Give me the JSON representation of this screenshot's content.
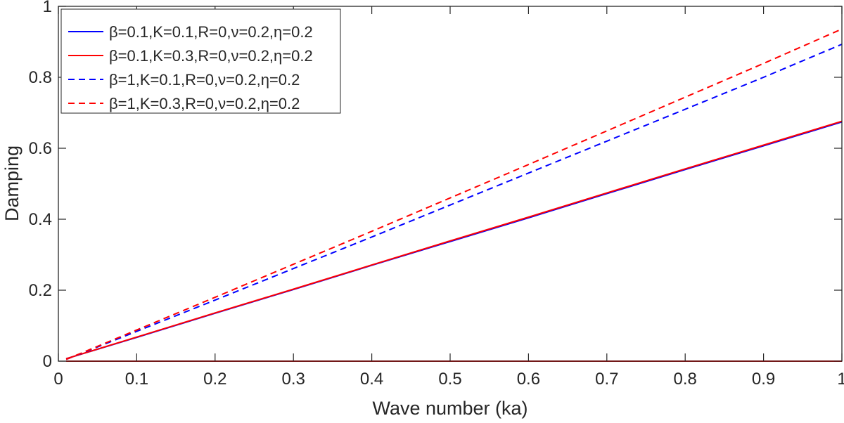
{
  "chart_data": {
    "type": "line",
    "xlabel": "Wave number (ka)",
    "ylabel": "Damping",
    "xlim": [
      0,
      1
    ],
    "ylim": [
      0,
      1
    ],
    "xticks": [
      "0",
      "0.1",
      "0.2",
      "0.3",
      "0.4",
      "0.5",
      "0.6",
      "0.7",
      "0.8",
      "0.9",
      "1"
    ],
    "yticks": [
      "0",
      "0.2",
      "0.4",
      "0.6",
      "0.8",
      "1"
    ],
    "grid": false,
    "legend_position": "top-left",
    "x": [
      0.01,
      0.1,
      0.2,
      0.3,
      0.4,
      0.5,
      0.6,
      0.7,
      0.8,
      0.9,
      1.0
    ],
    "series": [
      {
        "name": "β=0.1,K=0.1,R=0,ν=0.2,η=0.2",
        "color": "#0000ff",
        "style": "solid",
        "values": [
          0.007,
          0.067,
          0.135,
          0.202,
          0.27,
          0.337,
          0.404,
          0.472,
          0.54,
          0.607,
          0.674
        ]
      },
      {
        "name": "β=0.1,K=0.3,R=0,ν=0.2,η=0.2",
        "color": "#ff0000",
        "style": "solid",
        "values": [
          0.007,
          0.068,
          0.136,
          0.203,
          0.271,
          0.339,
          0.406,
          0.474,
          0.542,
          0.609,
          0.676
        ]
      },
      {
        "name": "β=1,K=0.1,R=0,ν=0.2,η=0.2",
        "color": "#0000ff",
        "style": "dashed",
        "values": [
          0.005,
          0.084,
          0.172,
          0.261,
          0.35,
          0.44,
          0.53,
          0.62,
          0.71,
          0.8,
          0.893
        ]
      },
      {
        "name": "β=1,K=0.3,R=0,ν=0.2,η=0.2",
        "color": "#ff0000",
        "style": "dashed",
        "values": [
          0.005,
          0.088,
          0.18,
          0.273,
          0.366,
          0.46,
          0.554,
          0.649,
          0.744,
          0.839,
          0.936
        ]
      },
      {
        "name": "",
        "color": "#ff0000",
        "style": "solid",
        "values": [
          0,
          0,
          0,
          0,
          0,
          0,
          0,
          0,
          0,
          0,
          0
        ]
      }
    ]
  }
}
